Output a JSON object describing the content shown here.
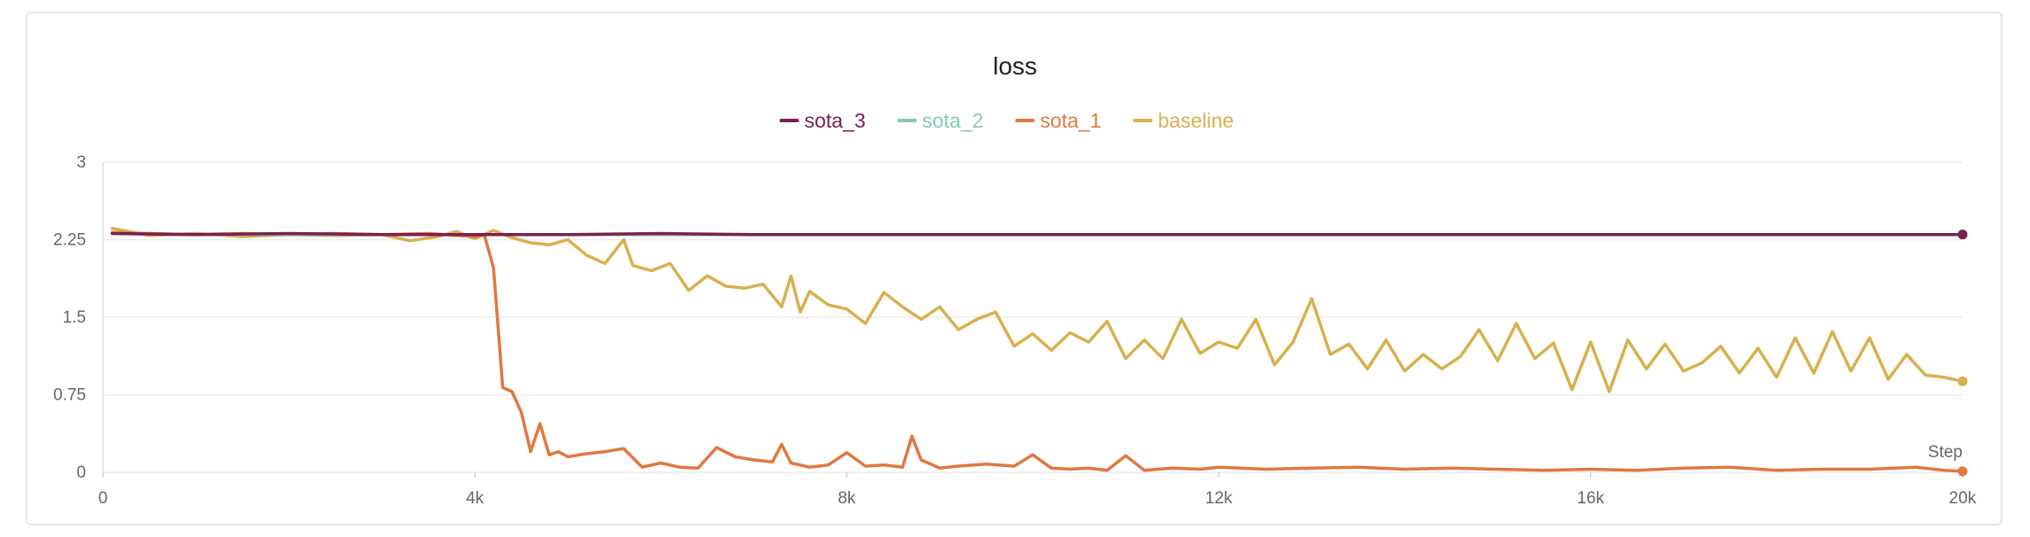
{
  "chart_data": {
    "type": "line",
    "title": "loss",
    "xlabel": "Step",
    "ylabel": "",
    "xlim": [
      0,
      20000
    ],
    "ylim": [
      0,
      3
    ],
    "x_ticks": [
      "0",
      "4k",
      "8k",
      "12k",
      "16k",
      "20k"
    ],
    "x_tick_values": [
      0,
      4000,
      8000,
      12000,
      16000,
      20000
    ],
    "y_ticks": [
      "0",
      "0.75",
      "1.5",
      "2.25",
      "3"
    ],
    "y_tick_values": [
      0,
      0.75,
      1.5,
      2.25,
      3
    ],
    "grid": true,
    "legend_position": "top-center",
    "series": [
      {
        "name": "sota_3",
        "color": "#7b2150",
        "x": [
          100,
          1000,
          2000,
          3000,
          4000,
          5000,
          6000,
          7000,
          8000,
          9000,
          10000,
          11000,
          12000,
          13000,
          14000,
          15000,
          16000,
          17000,
          18000,
          19000,
          20000
        ],
        "y": [
          2.31,
          2.3,
          2.31,
          2.3,
          2.3,
          2.3,
          2.31,
          2.3,
          2.3,
          2.3,
          2.3,
          2.3,
          2.3,
          2.3,
          2.3,
          2.3,
          2.3,
          2.3,
          2.3,
          2.3,
          2.3
        ]
      },
      {
        "name": "sota_2",
        "color": "#86c9b0",
        "x": [
          100,
          1000,
          2000,
          3000,
          4000,
          5000,
          6000,
          7000,
          8000,
          9000,
          10000,
          11000,
          12000,
          13000,
          14000,
          15000,
          16000,
          17000,
          18000,
          19000,
          20000
        ],
        "y": [
          2.31,
          2.3,
          2.3,
          2.3,
          2.3,
          2.3,
          2.3,
          2.3,
          2.3,
          2.3,
          2.3,
          2.3,
          2.3,
          2.3,
          2.3,
          2.3,
          2.3,
          2.3,
          2.3,
          2.3,
          2.3
        ]
      },
      {
        "name": "sota_1",
        "color": "#e07842",
        "x": [
          100,
          500,
          1000,
          1500,
          2000,
          2500,
          3000,
          3500,
          4000,
          4100,
          4200,
          4300,
          4400,
          4500,
          4600,
          4700,
          4800,
          4900,
          5000,
          5200,
          5400,
          5600,
          5800,
          6000,
          6200,
          6400,
          6600,
          6800,
          7000,
          7200,
          7300,
          7400,
          7600,
          7800,
          8000,
          8200,
          8400,
          8600,
          8700,
          8800,
          9000,
          9200,
          9500,
          9800,
          10000,
          10200,
          10400,
          10600,
          10800,
          11000,
          11200,
          11500,
          11800,
          12000,
          12500,
          13000,
          13500,
          14000,
          14500,
          15000,
          15500,
          16000,
          16500,
          17000,
          17500,
          18000,
          18500,
          19000,
          19500,
          19800,
          20000
        ],
        "y": [
          2.32,
          2.31,
          2.3,
          2.31,
          2.3,
          2.31,
          2.3,
          2.31,
          2.28,
          2.3,
          1.98,
          0.82,
          0.78,
          0.58,
          0.2,
          0.47,
          0.17,
          0.2,
          0.15,
          0.18,
          0.2,
          0.23,
          0.05,
          0.09,
          0.05,
          0.04,
          0.24,
          0.15,
          0.12,
          0.1,
          0.27,
          0.09,
          0.05,
          0.07,
          0.19,
          0.06,
          0.07,
          0.05,
          0.35,
          0.12,
          0.04,
          0.06,
          0.08,
          0.06,
          0.17,
          0.04,
          0.03,
          0.04,
          0.02,
          0.16,
          0.02,
          0.04,
          0.03,
          0.05,
          0.03,
          0.04,
          0.05,
          0.03,
          0.04,
          0.03,
          0.02,
          0.03,
          0.02,
          0.04,
          0.05,
          0.02,
          0.03,
          0.03,
          0.05,
          0.02,
          0.01
        ]
      },
      {
        "name": "baseline",
        "color": "#d9b04c",
        "x": [
          100,
          500,
          1000,
          1500,
          2000,
          2500,
          3000,
          3300,
          3600,
          3800,
          4000,
          4200,
          4400,
          4600,
          4800,
          5000,
          5200,
          5400,
          5600,
          5700,
          5900,
          6100,
          6300,
          6500,
          6700,
          6900,
          7100,
          7300,
          7400,
          7500,
          7600,
          7800,
          8000,
          8200,
          8400,
          8600,
          8800,
          9000,
          9200,
          9400,
          9600,
          9800,
          10000,
          10200,
          10400,
          10600,
          10800,
          11000,
          11200,
          11400,
          11600,
          11800,
          12000,
          12200,
          12400,
          12600,
          12800,
          13000,
          13200,
          13400,
          13600,
          13800,
          14000,
          14200,
          14400,
          14600,
          14800,
          15000,
          15200,
          15400,
          15600,
          15800,
          16000,
          16200,
          16400,
          16600,
          16800,
          17000,
          17200,
          17400,
          17600,
          17800,
          18000,
          18200,
          18400,
          18600,
          18800,
          19000,
          19200,
          19400,
          19600,
          19800,
          20000
        ],
        "y": [
          2.36,
          2.29,
          2.31,
          2.28,
          2.3,
          2.29,
          2.3,
          2.24,
          2.28,
          2.33,
          2.26,
          2.34,
          2.27,
          2.22,
          2.2,
          2.25,
          2.1,
          2.02,
          2.25,
          2.0,
          1.95,
          2.02,
          1.76,
          1.9,
          1.8,
          1.78,
          1.82,
          1.6,
          1.9,
          1.55,
          1.75,
          1.62,
          1.58,
          1.44,
          1.74,
          1.6,
          1.48,
          1.6,
          1.38,
          1.48,
          1.55,
          1.22,
          1.34,
          1.18,
          1.35,
          1.26,
          1.46,
          1.1,
          1.28,
          1.1,
          1.48,
          1.15,
          1.26,
          1.2,
          1.48,
          1.04,
          1.26,
          1.68,
          1.14,
          1.24,
          1.0,
          1.28,
          0.98,
          1.14,
          1.0,
          1.12,
          1.38,
          1.08,
          1.44,
          1.1,
          1.25,
          0.8,
          1.26,
          0.78,
          1.28,
          1.0,
          1.24,
          0.98,
          1.06,
          1.22,
          0.96,
          1.2,
          0.92,
          1.3,
          0.96,
          1.36,
          0.98,
          1.3,
          0.9,
          1.14,
          0.94,
          0.92,
          0.88
        ]
      }
    ]
  }
}
